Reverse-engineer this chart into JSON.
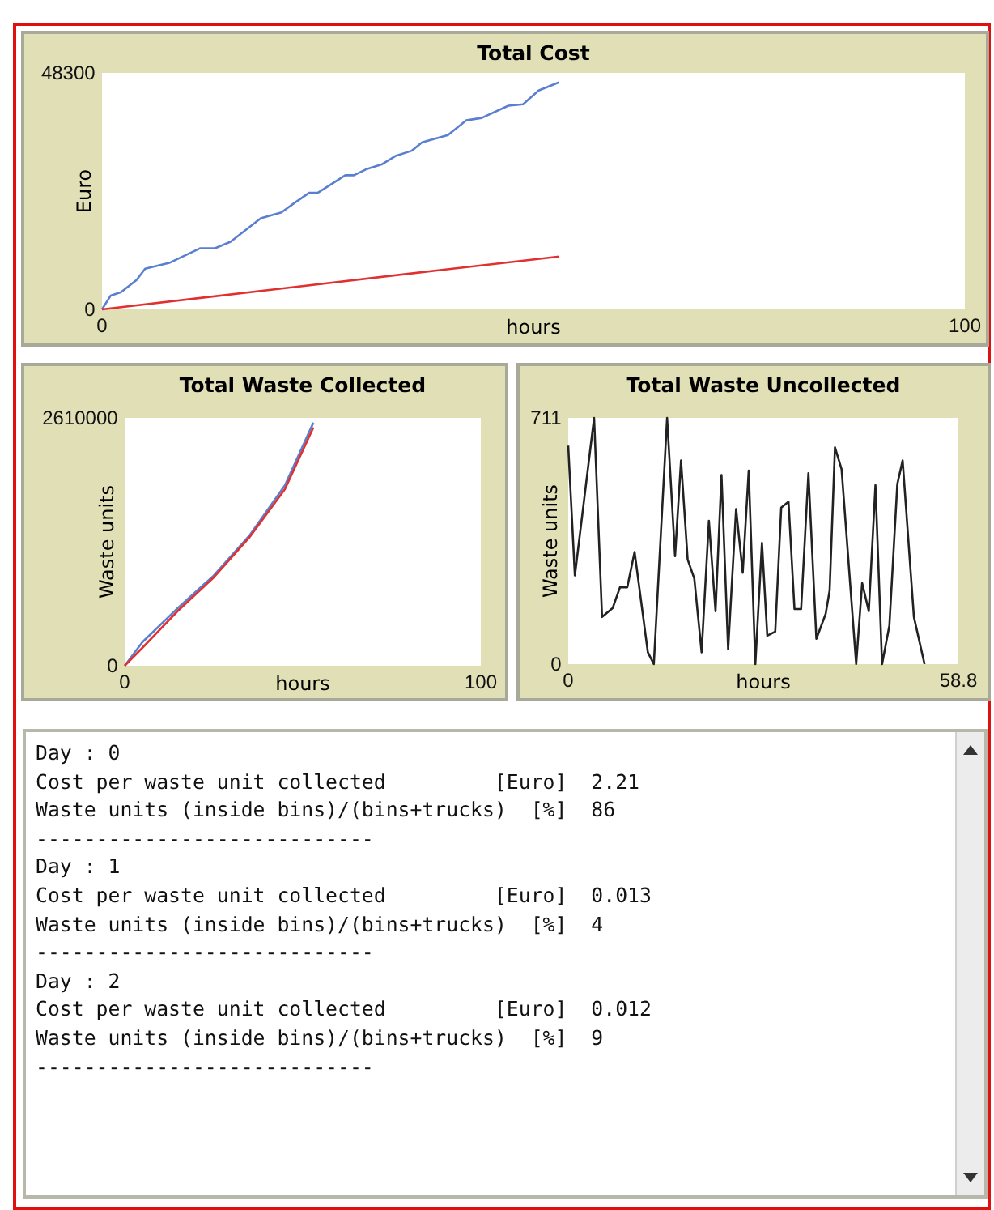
{
  "chart_data": [
    {
      "type": "line",
      "title": "Total Cost",
      "xlabel": "hours",
      "ylabel": "Euro",
      "xlim": [
        0,
        100
      ],
      "xticks": [
        0,
        100
      ],
      "ylim": [
        0,
        48300
      ],
      "yticks": [
        0,
        48300
      ],
      "grid": false,
      "series": [
        {
          "color": "#5b7fd0",
          "x": [
            0,
            1,
            2.2,
            4,
            5,
            7.8,
            11.4,
            13.1,
            14.9,
            18.4,
            20.8,
            22.2,
            24,
            25,
            28.2,
            29.2,
            30.6,
            32.4,
            34.1,
            35.9,
            37.1,
            40.1,
            42.2,
            44,
            47.1,
            48.8,
            50.6,
            53
          ],
          "values": [
            0,
            2800,
            3500,
            6000,
            8300,
            9500,
            12500,
            12500,
            13800,
            18600,
            19800,
            21600,
            23800,
            23800,
            27400,
            27400,
            28600,
            29600,
            31400,
            32400,
            34100,
            35600,
            38600,
            39100,
            41600,
            41900,
            44700,
            46400
          ]
        },
        {
          "color": "#e03030",
          "x": [
            0,
            20,
            40,
            53
          ],
          "values": [
            0,
            4100,
            8200,
            10800
          ]
        }
      ]
    },
    {
      "type": "line",
      "title": "Total Waste Collected",
      "xlabel": "hours",
      "ylabel": "Waste units",
      "xlim": [
        0,
        100
      ],
      "xticks": [
        0,
        100
      ],
      "ylim": [
        0,
        2610000
      ],
      "yticks": [
        0,
        2610000
      ],
      "grid": false,
      "series": [
        {
          "color": "#5b7fd0",
          "x": [
            0,
            5,
            15,
            25,
            35,
            45,
            53
          ],
          "values": [
            0,
            250000,
            610000,
            950000,
            1370000,
            1900000,
            2560000
          ]
        },
        {
          "color": "#e03030",
          "x": [
            0,
            5,
            15,
            25,
            35,
            45,
            53
          ],
          "values": [
            0,
            190000,
            580000,
            930000,
            1350000,
            1860000,
            2510000
          ]
        }
      ]
    },
    {
      "type": "line",
      "title": "Total Waste Uncollected",
      "xlabel": "hours",
      "ylabel": "Waste units",
      "xlim": [
        0,
        58.8
      ],
      "xticks": [
        0,
        58.8
      ],
      "ylim": [
        0,
        711
      ],
      "yticks": [
        0,
        711
      ],
      "grid": false,
      "series": [
        {
          "color": "#222222",
          "x": [
            0,
            1,
            3.9,
            5.1,
            6.7,
            7.8,
            8.9,
            10,
            12,
            12.9,
            14.9,
            16.1,
            17,
            18,
            19,
            20.1,
            21.2,
            22.2,
            23.1,
            24.1,
            25.3,
            26.3,
            27.2,
            28.2,
            29.2,
            30,
            31.2,
            32.1,
            33.2,
            34.1,
            35.1,
            36.2,
            37.4,
            38.8,
            39.4,
            40.2,
            41.2,
            43.4,
            44.3,
            45.3,
            46.3,
            47.3,
            48.4,
            49.6,
            50.4,
            52.1,
            53.7
          ],
          "values": [
            631,
            256,
            711,
            136,
            162,
            222,
            222,
            324,
            34,
            0,
            711,
            312,
            588,
            302,
            247,
            34,
            414,
            153,
            546,
            43,
            448,
            264,
            559,
            0,
            350,
            82,
            94,
            452,
            469,
            159,
            159,
            551,
            73,
            145,
            213,
            626,
            563,
            0,
            234,
            153,
            517,
            0,
            111,
            520,
            588,
            136,
            0
          ]
        }
      ]
    },
    {
      "type": "other",
      "annotations": [
        "Day : 0",
        "Cost per waste unit collected         [Euro]  2.21",
        "Waste units (inside bins)/(bins+trucks)  [%]  86",
        "----------------------------",
        "Day : 1",
        "Cost per waste unit collected         [Euro]  0.013",
        "Waste units (inside bins)/(bins+trucks)  [%]  4",
        "----------------------------",
        "Day : 2",
        "Cost per waste unit collected         [Euro]  0.012",
        "Waste units (inside bins)/(bins+trucks)  [%]  9",
        "----------------------------"
      ]
    }
  ]
}
